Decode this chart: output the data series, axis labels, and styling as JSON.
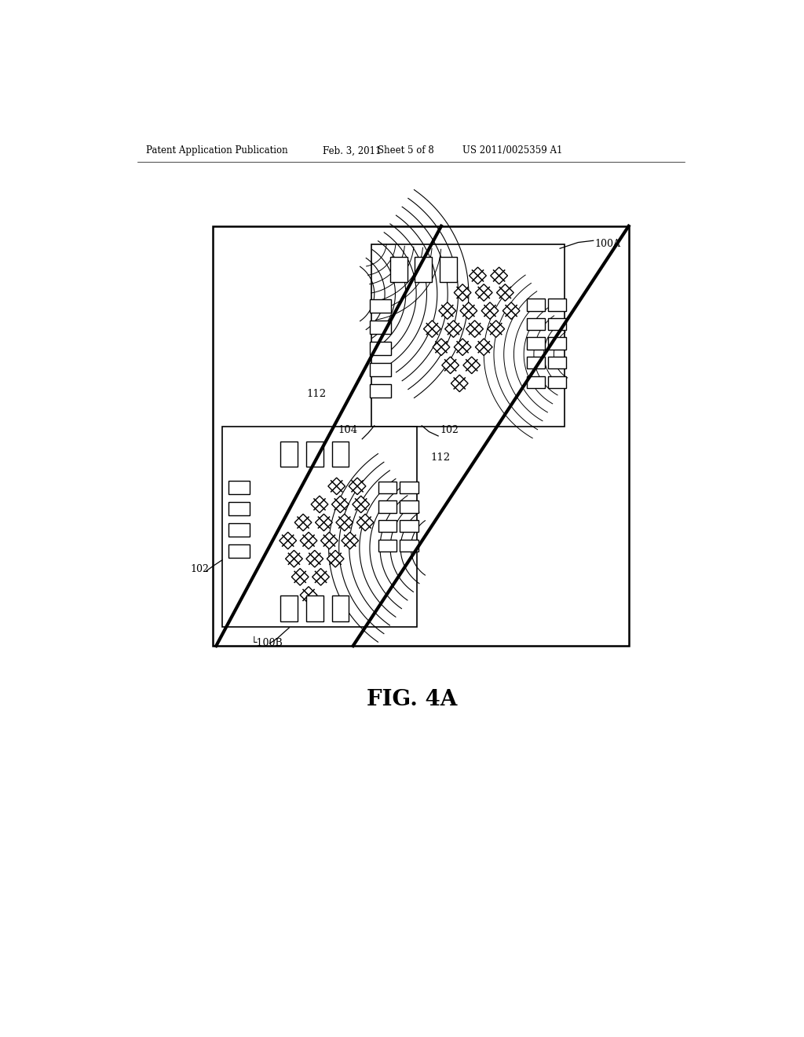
{
  "bg_color": "#ffffff",
  "fig_width": 10.24,
  "fig_height": 13.2,
  "header_text": "Patent Application Publication",
  "header_date": "Feb. 3, 2011",
  "header_sheet": "Sheet 5 of 8",
  "header_patent": "US 2011/0025359 A1",
  "fig_label": "FIG. 4A",
  "label_100A": "100A",
  "label_100B": "100B",
  "label_102a": "102",
  "label_102b": "102",
  "label_104": "104",
  "label_112a": "112",
  "label_112b": "112"
}
